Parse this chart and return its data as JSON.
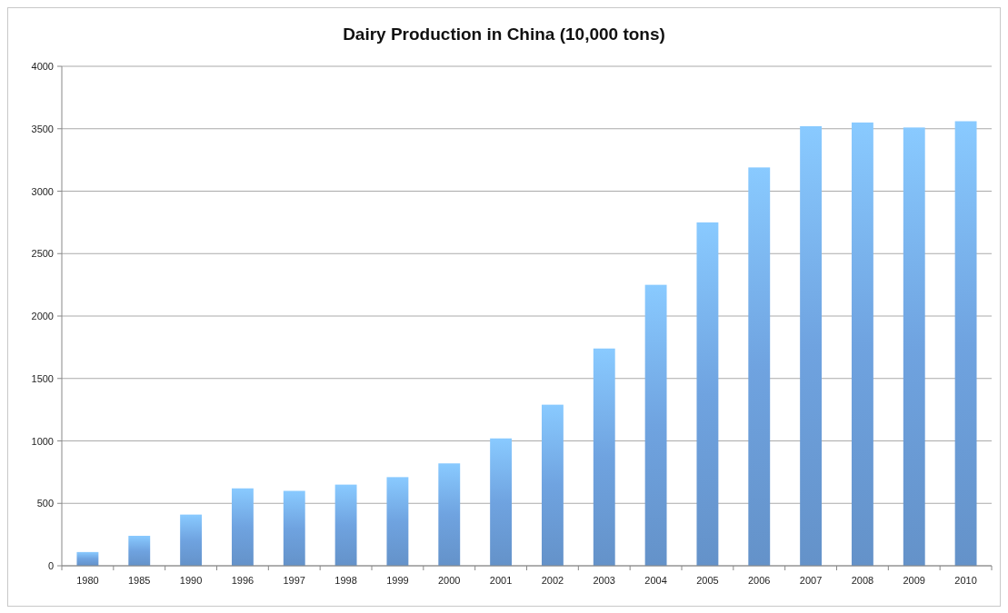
{
  "chart_data": {
    "type": "bar",
    "title": "Dairy Production in China (10,000 tons)",
    "categories": [
      "1980",
      "1985",
      "1990",
      "1996",
      "1997",
      "1998",
      "1999",
      "2000",
      "2001",
      "2002",
      "2003",
      "2004",
      "2005",
      "2006",
      "2007",
      "2008",
      "2009",
      "2010"
    ],
    "values": [
      110,
      240,
      410,
      620,
      600,
      650,
      710,
      820,
      1020,
      1290,
      1740,
      2250,
      2750,
      3190,
      3520,
      3550,
      3510,
      3560
    ],
    "color": "#6fa3e0",
    "ylim": [
      0,
      4000
    ],
    "yticks": [
      0,
      500,
      1000,
      1500,
      2000,
      2500,
      3000,
      3500,
      4000
    ],
    "grid": "y"
  }
}
